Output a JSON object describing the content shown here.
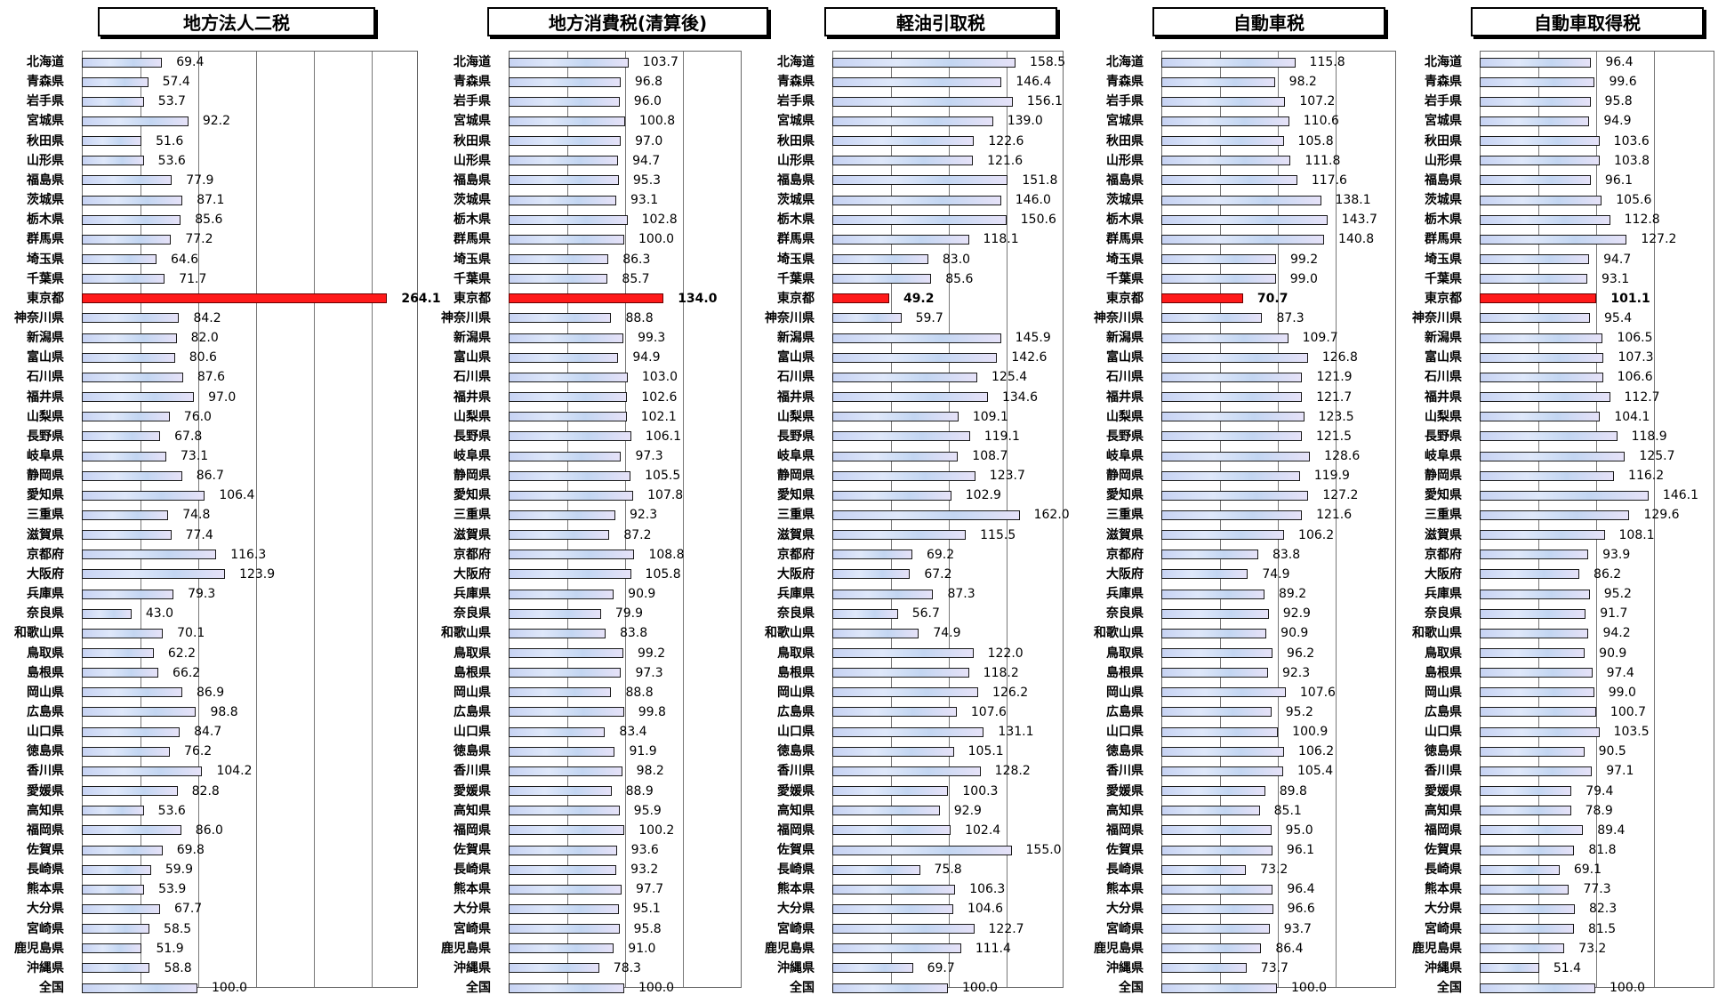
{
  "chart_data": [
    {
      "type": "bar",
      "orientation": "horizontal",
      "title": "地方法人二税",
      "categories": [
        "北海道",
        "青森県",
        "岩手県",
        "宮城県",
        "秋田県",
        "山形県",
        "福島県",
        "茨城県",
        "栃木県",
        "群馬県",
        "埼玉県",
        "千葉県",
        "東京都",
        "神奈川県",
        "新潟県",
        "富山県",
        "石川県",
        "福井県",
        "山梨県",
        "長野県",
        "岐阜県",
        "静岡県",
        "愛知県",
        "三重県",
        "滋賀県",
        "京都府",
        "大阪府",
        "兵庫県",
        "奈良県",
        "和歌山県",
        "鳥取県",
        "島根県",
        "岡山県",
        "広島県",
        "山口県",
        "徳島県",
        "香川県",
        "愛媛県",
        "高知県",
        "福岡県",
        "佐賀県",
        "長崎県",
        "熊本県",
        "大分県",
        "宮崎県",
        "鹿児島県",
        "沖縄県",
        "全国"
      ],
      "values": [
        69.4,
        57.4,
        53.7,
        92.2,
        51.6,
        53.6,
        77.9,
        87.1,
        85.6,
        77.2,
        64.6,
        71.7,
        264.1,
        84.2,
        82.0,
        80.6,
        87.6,
        97.0,
        76.0,
        67.8,
        73.1,
        86.7,
        106.4,
        74.8,
        77.4,
        116.3,
        123.9,
        79.3,
        43.0,
        70.1,
        62.2,
        66.2,
        86.9,
        98.8,
        84.7,
        76.2,
        104.2,
        82.8,
        53.6,
        86.0,
        69.8,
        59.9,
        53.9,
        67.7,
        58.5,
        51.9,
        58.8,
        100.0
      ],
      "value_labels": [
        "69.4",
        "57.4",
        "53.7",
        "92.2",
        "51.6",
        "53.6",
        "77.9",
        "87.1",
        "85.6",
        "77.2",
        "64.6",
        "71.7",
        "264.1",
        "84.2",
        "82.0",
        "80.6",
        "87.6",
        "97.0",
        "76.0",
        "67.8",
        "73.1",
        "86.7",
        "106.4",
        "74.8",
        "77.4",
        "116.3",
        "123.9",
        "79.3",
        "43.0",
        "70.1",
        "62.2",
        "66.2",
        "86.9",
        "98.8",
        "84.7",
        "76.2",
        "104.2",
        "82.8",
        "53.6",
        "86.0",
        "69.8",
        "59.9",
        "53.9",
        "67.7",
        "58.5",
        "51.9",
        "58.8",
        "100.0"
      ],
      "highlight": "東京都",
      "xlim": [
        0,
        300
      ],
      "grid": true
    },
    {
      "type": "bar",
      "orientation": "horizontal",
      "title": "地方消費税(清算後)",
      "categories": [
        "北海道",
        "青森県",
        "岩手県",
        "宮城県",
        "秋田県",
        "山形県",
        "福島県",
        "茨城県",
        "栃木県",
        "群馬県",
        "埼玉県",
        "千葉県",
        "東京都",
        "神奈川県",
        "新潟県",
        "富山県",
        "石川県",
        "福井県",
        "山梨県",
        "長野県",
        "岐阜県",
        "静岡県",
        "愛知県",
        "三重県",
        "滋賀県",
        "京都府",
        "大阪府",
        "兵庫県",
        "奈良県",
        "和歌山県",
        "鳥取県",
        "島根県",
        "岡山県",
        "広島県",
        "山口県",
        "徳島県",
        "香川県",
        "愛媛県",
        "高知県",
        "福岡県",
        "佐賀県",
        "長崎県",
        "熊本県",
        "大分県",
        "宮崎県",
        "鹿児島県",
        "沖縄県",
        "全国"
      ],
      "values": [
        103.7,
        96.8,
        96.0,
        100.8,
        97.0,
        94.7,
        95.3,
        93.1,
        102.8,
        100.0,
        86.3,
        85.7,
        134.0,
        88.8,
        99.3,
        94.9,
        103.0,
        102.6,
        102.1,
        106.1,
        97.3,
        105.5,
        107.8,
        92.3,
        87.2,
        108.8,
        105.8,
        90.9,
        79.9,
        83.8,
        99.2,
        97.3,
        88.8,
        99.8,
        83.4,
        91.9,
        98.2,
        88.9,
        95.9,
        100.2,
        93.6,
        93.2,
        97.7,
        95.1,
        95.8,
        91.0,
        78.3,
        100.0
      ],
      "value_labels": [
        "103.7",
        "96.8",
        "96.0",
        "100.8",
        "97.0",
        "94.7",
        "95.3",
        "93.1",
        "102.8",
        "100.0",
        "86.3",
        "85.7",
        "134.0",
        "88.8",
        "99.3",
        "94.9",
        "103.0",
        "102.6",
        "102.1",
        "106.1",
        "97.3",
        "105.5",
        "107.8",
        "92.3",
        "87.2",
        "108.8",
        "105.8",
        "90.9",
        "79.9",
        "83.8",
        "99.2",
        "97.3",
        "88.8",
        "99.8",
        "83.4",
        "91.9",
        "98.2",
        "88.9",
        "95.9",
        "100.2",
        "93.6",
        "93.2",
        "97.7",
        "95.1",
        "95.8",
        "91.0",
        "78.3",
        "100.0"
      ],
      "highlight": "東京都",
      "xlim": [
        0,
        180
      ],
      "grid": true
    },
    {
      "type": "bar",
      "orientation": "horizontal",
      "title": "軽油引取税",
      "categories": [
        "北海道",
        "青森県",
        "岩手県",
        "宮城県",
        "秋田県",
        "山形県",
        "福島県",
        "茨城県",
        "栃木県",
        "群馬県",
        "埼玉県",
        "千葉県",
        "東京都",
        "神奈川県",
        "新潟県",
        "富山県",
        "石川県",
        "福井県",
        "山梨県",
        "長野県",
        "岐阜県",
        "静岡県",
        "愛知県",
        "三重県",
        "滋賀県",
        "京都府",
        "大阪府",
        "兵庫県",
        "奈良県",
        "和歌山県",
        "鳥取県",
        "島根県",
        "岡山県",
        "広島県",
        "山口県",
        "徳島県",
        "香川県",
        "愛媛県",
        "高知県",
        "福岡県",
        "佐賀県",
        "長崎県",
        "熊本県",
        "大分県",
        "宮崎県",
        "鹿児島県",
        "沖縄県",
        "全国"
      ],
      "values": [
        158.5,
        146.4,
        156.1,
        139.0,
        122.6,
        121.6,
        151.8,
        146.0,
        150.6,
        118.1,
        83.0,
        85.6,
        49.2,
        59.7,
        145.9,
        142.6,
        125.4,
        134.6,
        109.1,
        119.1,
        108.7,
        123.7,
        102.9,
        162.0,
        115.5,
        69.2,
        67.2,
        87.3,
        56.7,
        74.9,
        122.0,
        118.2,
        126.2,
        107.6,
        131.1,
        105.1,
        128.2,
        100.3,
        92.9,
        102.4,
        155.0,
        75.8,
        106.3,
        104.6,
        122.7,
        111.4,
        69.7,
        100.0
      ],
      "value_labels": [
        "158.5",
        "146.4",
        "156.1",
        "139.0",
        "122.6",
        "121.6",
        "151.8",
        "146.0",
        "150.6",
        "118.1",
        "83.0",
        "85.6",
        "49.2",
        "59.7",
        "145.9",
        "142.6",
        "125.4",
        "134.6",
        "109.1",
        "119.1",
        "108.7",
        "123.7",
        "102.9",
        "162.0",
        "115.5",
        "69.2",
        "67.2",
        "87.3",
        "56.7",
        "74.9",
        "122.0",
        "118.2",
        "126.2",
        "107.6",
        "131.1",
        "105.1",
        "128.2",
        "100.3",
        "92.9",
        "102.4",
        "155.0",
        "75.8",
        "106.3",
        "104.6",
        "122.7",
        "111.4",
        "69.7",
        "100.0"
      ],
      "highlight": "東京都",
      "xlim": [
        0,
        180
      ],
      "grid": true
    },
    {
      "type": "bar",
      "orientation": "horizontal",
      "title": "自動車税",
      "categories": [
        "北海道",
        "青森県",
        "岩手県",
        "宮城県",
        "秋田県",
        "山形県",
        "福島県",
        "茨城県",
        "栃木県",
        "群馬県",
        "埼玉県",
        "千葉県",
        "東京都",
        "神奈川県",
        "新潟県",
        "富山県",
        "石川県",
        "福井県",
        "山梨県",
        "長野県",
        "岐阜県",
        "静岡県",
        "愛知県",
        "三重県",
        "滋賀県",
        "京都府",
        "大阪府",
        "兵庫県",
        "奈良県",
        "和歌山県",
        "鳥取県",
        "島根県",
        "岡山県",
        "広島県",
        "山口県",
        "徳島県",
        "香川県",
        "愛媛県",
        "高知県",
        "福岡県",
        "佐賀県",
        "長崎県",
        "熊本県",
        "大分県",
        "宮崎県",
        "鹿児島県",
        "沖縄県",
        "全国"
      ],
      "values": [
        115.8,
        98.2,
        107.2,
        110.6,
        105.8,
        111.8,
        117.6,
        138.1,
        143.7,
        140.8,
        99.2,
        99.0,
        70.7,
        87.3,
        109.7,
        126.8,
        121.9,
        121.7,
        123.5,
        121.5,
        128.6,
        119.9,
        127.2,
        121.6,
        106.2,
        83.8,
        74.9,
        89.2,
        92.9,
        90.9,
        96.2,
        92.3,
        107.6,
        95.2,
        100.9,
        106.2,
        105.4,
        89.8,
        85.1,
        95.0,
        96.1,
        73.2,
        96.4,
        96.6,
        93.7,
        86.4,
        73.7,
        100.0
      ],
      "value_labels": [
        "115.8",
        "98.2",
        "107.2",
        "110.6",
        "105.8",
        "111.8",
        "117.6",
        "138.1",
        "143.7",
        "140.8",
        "99.2",
        "99.0",
        "70.7",
        "87.3",
        "109.7",
        "126.8",
        "121.9",
        "121.7",
        "123.5",
        "121.5",
        "128.6",
        "119.9",
        "127.2",
        "121.6",
        "106.2",
        "83.8",
        "74.9",
        "89.2",
        "92.9",
        "90.9",
        "96.2",
        "92.3",
        "107.6",
        "95.2",
        "100.9",
        "106.2",
        "105.4",
        "89.8",
        "85.1",
        "95.0",
        "96.1",
        "73.2",
        "96.4",
        "96.6",
        "93.7",
        "86.4",
        "73.7",
        "100.0"
      ],
      "highlight": "東京都",
      "xlim": [
        0,
        180
      ],
      "grid": true
    },
    {
      "type": "bar",
      "orientation": "horizontal",
      "title": "自動車取得税",
      "categories": [
        "北海道",
        "青森県",
        "岩手県",
        "宮城県",
        "秋田県",
        "山形県",
        "福島県",
        "茨城県",
        "栃木県",
        "群馬県",
        "埼玉県",
        "千葉県",
        "東京都",
        "神奈川県",
        "新潟県",
        "富山県",
        "石川県",
        "福井県",
        "山梨県",
        "長野県",
        "岐阜県",
        "静岡県",
        "愛知県",
        "三重県",
        "滋賀県",
        "京都府",
        "大阪府",
        "兵庫県",
        "奈良県",
        "和歌山県",
        "鳥取県",
        "島根県",
        "岡山県",
        "広島県",
        "山口県",
        "徳島県",
        "香川県",
        "愛媛県",
        "高知県",
        "福岡県",
        "佐賀県",
        "長崎県",
        "熊本県",
        "大分県",
        "宮崎県",
        "鹿児島県",
        "沖縄県",
        "全国"
      ],
      "values": [
        96.4,
        99.6,
        95.8,
        94.9,
        103.6,
        103.8,
        96.1,
        105.6,
        112.8,
        127.2,
        94.7,
        93.1,
        101.1,
        95.4,
        106.5,
        107.3,
        106.6,
        112.7,
        104.1,
        118.9,
        125.7,
        116.2,
        146.1,
        129.6,
        108.1,
        93.9,
        86.2,
        95.2,
        91.7,
        94.2,
        90.9,
        97.4,
        99.0,
        100.7,
        103.5,
        90.5,
        97.1,
        79.4,
        78.9,
        89.4,
        81.8,
        69.1,
        77.3,
        82.3,
        81.5,
        73.2,
        51.4,
        100.0
      ],
      "value_labels": [
        "96.4",
        "99.6",
        "95.8",
        "94.9",
        "103.6",
        "103.8",
        "96.1",
        "105.6",
        "112.8",
        "127.2",
        "94.7",
        "93.1",
        "101.1",
        "95.4",
        "106.5",
        "107.3",
        "106.6",
        "112.7",
        "104.1",
        "118.9",
        "125.7",
        "116.2",
        "146.1",
        "129.6",
        "108.1",
        "93.9",
        "86.2",
        "95.2",
        "91.7",
        "94.2",
        "90.9",
        "97.4",
        "99.0",
        "100.7",
        "103.5",
        "90.5",
        "97.1",
        "79.4",
        "78.9",
        "89.4",
        "81.8",
        "69.1",
        "77.3",
        "82.3",
        "81.5",
        "73.2",
        "51.4",
        "100.0"
      ],
      "highlight": "東京都",
      "xlim": [
        0,
        180
      ],
      "grid": true
    }
  ]
}
